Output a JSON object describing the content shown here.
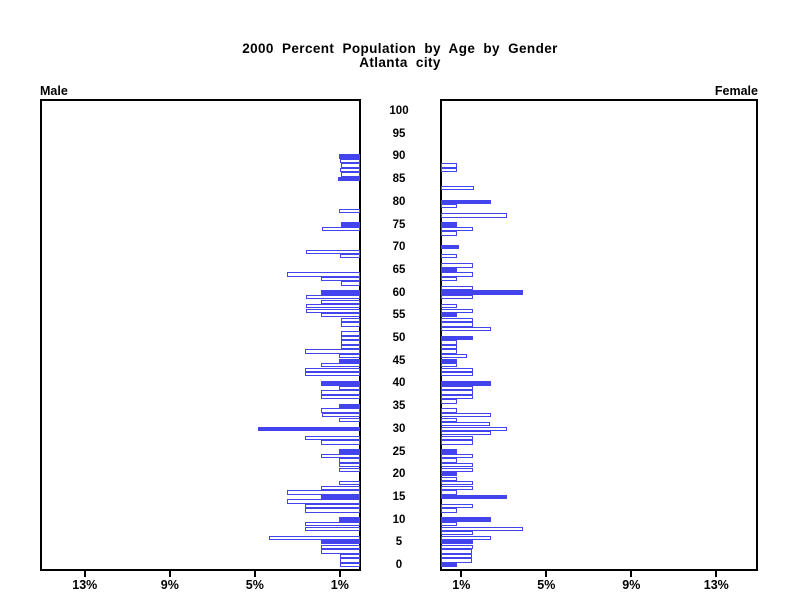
{
  "chart_data": {
    "type": "bar",
    "subtype": "population-pyramid",
    "title": "2000 Percent Population by Age by Gender",
    "subtitle": "Atlanta city",
    "unit": "percent of population, single year of age",
    "colors": {
      "bar": "#4444ee",
      "axis": "#000000",
      "background": "#ffffff"
    },
    "age_axis": {
      "ticks": [
        0,
        5,
        10,
        15,
        20,
        25,
        30,
        35,
        40,
        45,
        50,
        55,
        60,
        65,
        70,
        75,
        80,
        85,
        90,
        95,
        100
      ]
    },
    "pct_axis": {
      "max": 15,
      "male_tick_order": [
        13,
        9,
        5,
        1
      ],
      "female_tick_order": [
        1,
        5,
        9,
        13
      ],
      "tick_suffix": "%"
    },
    "legend_note": "filled bars = solid blue, hollow bars = white with blue outline (as rendered)",
    "panels": [
      {
        "label": "Male",
        "side": "left",
        "bars": [
          {
            "a": 90,
            "v": 1.0,
            "f": 1
          },
          {
            "a": 89,
            "v": 0.95,
            "f": 0
          },
          {
            "a": 88,
            "v": 0.9,
            "f": 0
          },
          {
            "a": 87,
            "v": 0.95,
            "f": 0
          },
          {
            "a": 86,
            "v": 0.9,
            "f": 0
          },
          {
            "a": 85,
            "v": 1.05,
            "f": 1
          },
          {
            "a": 78,
            "v": 1.0,
            "f": 0
          },
          {
            "a": 75,
            "v": 0.9,
            "f": 1
          },
          {
            "a": 74,
            "v": 1.8,
            "f": 0
          },
          {
            "a": 69,
            "v": 2.55,
            "f": 0
          },
          {
            "a": 68,
            "v": 0.95,
            "f": 0
          },
          {
            "a": 64,
            "v": 3.45,
            "f": 0
          },
          {
            "a": 63,
            "v": 1.85,
            "f": 0
          },
          {
            "a": 62,
            "v": 0.9,
            "f": 0
          },
          {
            "a": 60,
            "v": 1.85,
            "f": 1
          },
          {
            "a": 59,
            "v": 2.55,
            "f": 0
          },
          {
            "a": 58,
            "v": 1.85,
            "f": 0
          },
          {
            "a": 57,
            "v": 2.55,
            "f": 0
          },
          {
            "a": 56,
            "v": 2.55,
            "f": 0
          },
          {
            "a": 55,
            "v": 1.85,
            "f": 0
          },
          {
            "a": 54,
            "v": 0.9,
            "f": 0
          },
          {
            "a": 53,
            "v": 0.9,
            "f": 0
          },
          {
            "a": 51,
            "v": 0.9,
            "f": 0
          },
          {
            "a": 50,
            "v": 0.9,
            "f": 0
          },
          {
            "a": 49,
            "v": 0.9,
            "f": 0
          },
          {
            "a": 48,
            "v": 0.9,
            "f": 0
          },
          {
            "a": 47,
            "v": 2.6,
            "f": 0
          },
          {
            "a": 46,
            "v": 1.0,
            "f": 0
          },
          {
            "a": 45,
            "v": 1.0,
            "f": 1
          },
          {
            "a": 44,
            "v": 1.85,
            "f": 0
          },
          {
            "a": 43,
            "v": 2.6,
            "f": 0
          },
          {
            "a": 42,
            "v": 2.6,
            "f": 0
          },
          {
            "a": 40,
            "v": 1.85,
            "f": 1
          },
          {
            "a": 39,
            "v": 1.0,
            "f": 0
          },
          {
            "a": 38,
            "v": 1.85,
            "f": 0
          },
          {
            "a": 37,
            "v": 1.85,
            "f": 0
          },
          {
            "a": 35,
            "v": 1.0,
            "f": 1
          },
          {
            "a": 34,
            "v": 1.85,
            "f": 0
          },
          {
            "a": 33,
            "v": 1.8,
            "f": 0
          },
          {
            "a": 32,
            "v": 1.0,
            "f": 0
          },
          {
            "a": 30,
            "v": 4.8,
            "f": 1
          },
          {
            "a": 28,
            "v": 2.6,
            "f": 0
          },
          {
            "a": 27,
            "v": 1.85,
            "f": 0
          },
          {
            "a": 25,
            "v": 1.0,
            "f": 1
          },
          {
            "a": 24,
            "v": 1.85,
            "f": 0
          },
          {
            "a": 23,
            "v": 1.0,
            "f": 0
          },
          {
            "a": 22,
            "v": 1.0,
            "f": 0
          },
          {
            "a": 21,
            "v": 1.0,
            "f": 0
          },
          {
            "a": 18,
            "v": 1.0,
            "f": 0
          },
          {
            "a": 17,
            "v": 1.85,
            "f": 0
          },
          {
            "a": 16,
            "v": 3.45,
            "f": 0
          },
          {
            "a": 15,
            "v": 1.85,
            "f": 1
          },
          {
            "a": 14,
            "v": 3.45,
            "f": 0
          },
          {
            "a": 13,
            "v": 2.6,
            "f": 0
          },
          {
            "a": 12,
            "v": 2.6,
            "f": 0
          },
          {
            "a": 10,
            "v": 1.0,
            "f": 1
          },
          {
            "a": 9,
            "v": 2.6,
            "f": 0
          },
          {
            "a": 8,
            "v": 2.6,
            "f": 0
          },
          {
            "a": 6,
            "v": 4.3,
            "f": 0
          },
          {
            "a": 5,
            "v": 1.85,
            "f": 1
          },
          {
            "a": 4,
            "v": 1.85,
            "f": 0
          },
          {
            "a": 3,
            "v": 1.85,
            "f": 0
          },
          {
            "a": 2,
            "v": 0.95,
            "f": 0
          },
          {
            "a": 1,
            "v": 0.95,
            "f": 0
          },
          {
            "a": 0,
            "v": 0.95,
            "f": 0
          }
        ]
      },
      {
        "label": "Female",
        "side": "right",
        "bars": [
          {
            "a": 88,
            "v": 0.75,
            "f": 0
          },
          {
            "a": 87,
            "v": 0.75,
            "f": 0
          },
          {
            "a": 83,
            "v": 1.55,
            "f": 0
          },
          {
            "a": 80,
            "v": 2.35,
            "f": 1
          },
          {
            "a": 79,
            "v": 0.75,
            "f": 0
          },
          {
            "a": 77,
            "v": 3.1,
            "f": 0
          },
          {
            "a": 75,
            "v": 0.75,
            "f": 1
          },
          {
            "a": 74,
            "v": 1.5,
            "f": 0
          },
          {
            "a": 73,
            "v": 0.75,
            "f": 0
          },
          {
            "a": 70,
            "v": 0.85,
            "f": 1
          },
          {
            "a": 68,
            "v": 0.75,
            "f": 0
          },
          {
            "a": 66,
            "v": 1.5,
            "f": 0
          },
          {
            "a": 65,
            "v": 0.75,
            "f": 1
          },
          {
            "a": 64,
            "v": 1.5,
            "f": 0
          },
          {
            "a": 63,
            "v": 0.75,
            "f": 0
          },
          {
            "a": 61,
            "v": 1.5,
            "f": 0
          },
          {
            "a": 60,
            "v": 3.85,
            "f": 1
          },
          {
            "a": 59,
            "v": 1.5,
            "f": 0
          },
          {
            "a": 57,
            "v": 0.75,
            "f": 0
          },
          {
            "a": 56,
            "v": 1.5,
            "f": 0
          },
          {
            "a": 55,
            "v": 0.75,
            "f": 1
          },
          {
            "a": 54,
            "v": 1.5,
            "f": 0
          },
          {
            "a": 53,
            "v": 1.5,
            "f": 0
          },
          {
            "a": 52,
            "v": 2.35,
            "f": 0
          },
          {
            "a": 50,
            "v": 1.5,
            "f": 1
          },
          {
            "a": 49,
            "v": 0.75,
            "f": 0
          },
          {
            "a": 48,
            "v": 0.75,
            "f": 0
          },
          {
            "a": 47,
            "v": 0.75,
            "f": 0
          },
          {
            "a": 46,
            "v": 1.2,
            "f": 0
          },
          {
            "a": 45,
            "v": 0.75,
            "f": 1
          },
          {
            "a": 44,
            "v": 0.75,
            "f": 0
          },
          {
            "a": 43,
            "v": 1.5,
            "f": 0
          },
          {
            "a": 42,
            "v": 1.5,
            "f": 0
          },
          {
            "a": 40,
            "v": 2.35,
            "f": 1
          },
          {
            "a": 39,
            "v": 1.5,
            "f": 0
          },
          {
            "a": 38,
            "v": 1.5,
            "f": 0
          },
          {
            "a": 37,
            "v": 1.5,
            "f": 0
          },
          {
            "a": 36,
            "v": 0.75,
            "f": 0
          },
          {
            "a": 34,
            "v": 0.75,
            "f": 0
          },
          {
            "a": 33,
            "v": 2.35,
            "f": 0
          },
          {
            "a": 32,
            "v": 0.75,
            "f": 0
          },
          {
            "a": 31,
            "v": 2.3,
            "f": 0
          },
          {
            "a": 30,
            "v": 3.1,
            "f": 0
          },
          {
            "a": 29,
            "v": 2.35,
            "f": 0
          },
          {
            "a": 28,
            "v": 1.5,
            "f": 0
          },
          {
            "a": 27,
            "v": 1.5,
            "f": 0
          },
          {
            "a": 25,
            "v": 0.75,
            "f": 1
          },
          {
            "a": 24,
            "v": 1.5,
            "f": 0
          },
          {
            "a": 23,
            "v": 0.75,
            "f": 0
          },
          {
            "a": 22,
            "v": 1.5,
            "f": 0
          },
          {
            "a": 21,
            "v": 1.5,
            "f": 0
          },
          {
            "a": 20,
            "v": 0.75,
            "f": 1
          },
          {
            "a": 19,
            "v": 0.75,
            "f": 0
          },
          {
            "a": 18,
            "v": 1.5,
            "f": 0
          },
          {
            "a": 17,
            "v": 1.5,
            "f": 0
          },
          {
            "a": 16,
            "v": 0.75,
            "f": 0
          },
          {
            "a": 15,
            "v": 3.1,
            "f": 1
          },
          {
            "a": 13,
            "v": 1.5,
            "f": 0
          },
          {
            "a": 12,
            "v": 0.75,
            "f": 0
          },
          {
            "a": 10,
            "v": 2.35,
            "f": 1
          },
          {
            "a": 9,
            "v": 0.75,
            "f": 0
          },
          {
            "a": 8,
            "v": 3.85,
            "f": 0
          },
          {
            "a": 7,
            "v": 1.5,
            "f": 0
          },
          {
            "a": 6,
            "v": 2.35,
            "f": 0
          },
          {
            "a": 5,
            "v": 1.5,
            "f": 1
          },
          {
            "a": 4,
            "v": 1.5,
            "f": 0
          },
          {
            "a": 3,
            "v": 1.45,
            "f": 0
          },
          {
            "a": 2,
            "v": 1.45,
            "f": 0
          },
          {
            "a": 1,
            "v": 1.45,
            "f": 0
          },
          {
            "a": 0,
            "v": 0.75,
            "f": 1
          }
        ]
      }
    ]
  }
}
